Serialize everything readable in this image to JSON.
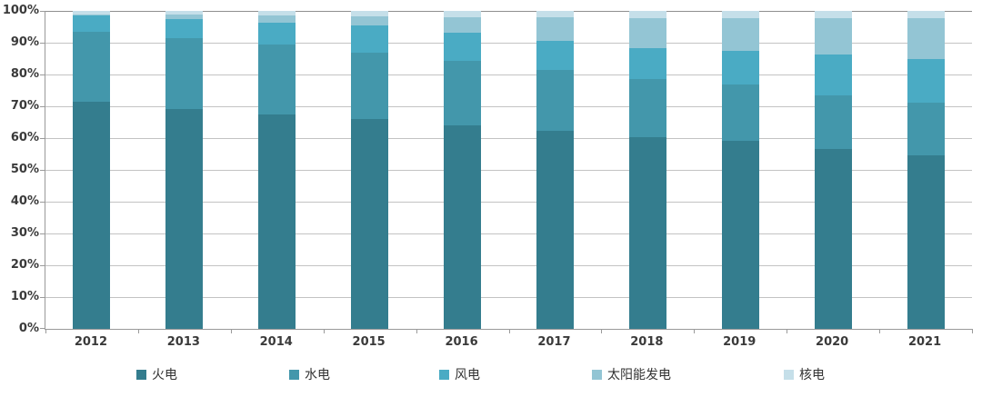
{
  "chart_data": {
    "type": "bar",
    "stacking": "percent",
    "title": "",
    "xlabel": "",
    "ylabel": "",
    "ylim": [
      0,
      100
    ],
    "y_tick_step": 10,
    "y_tick_suffix": "%",
    "grid": true,
    "legend_position": "bottom",
    "categories": [
      "2012",
      "2013",
      "2014",
      "2015",
      "2016",
      "2017",
      "2018",
      "2019",
      "2020",
      "2021"
    ],
    "series": [
      {
        "name": "火电",
        "color": "#347D8E",
        "values": [
          71.5,
          69.2,
          67.4,
          66.0,
          63.9,
          62.2,
          60.2,
          59.2,
          56.6,
          54.6
        ]
      },
      {
        "name": "水电",
        "color": "#4397AB",
        "values": [
          21.7,
          22.3,
          22.1,
          21.0,
          20.1,
          19.2,
          18.5,
          17.7,
          16.8,
          16.5
        ]
      },
      {
        "name": "风电",
        "color": "#4AABC4",
        "values": [
          5.3,
          6.0,
          7.0,
          8.6,
          9.0,
          9.2,
          9.7,
          10.4,
          12.8,
          13.8
        ]
      },
      {
        "name": "太阳能发电",
        "color": "#93C5D4",
        "values": [
          0.3,
          1.4,
          2.1,
          2.8,
          4.7,
          7.3,
          9.2,
          10.2,
          11.5,
          12.9
        ]
      },
      {
        "name": "核电",
        "color": "#C5DFE9",
        "values": [
          1.1,
          1.2,
          1.5,
          1.8,
          2.0,
          2.0,
          2.4,
          2.4,
          2.3,
          2.2
        ]
      }
    ]
  }
}
